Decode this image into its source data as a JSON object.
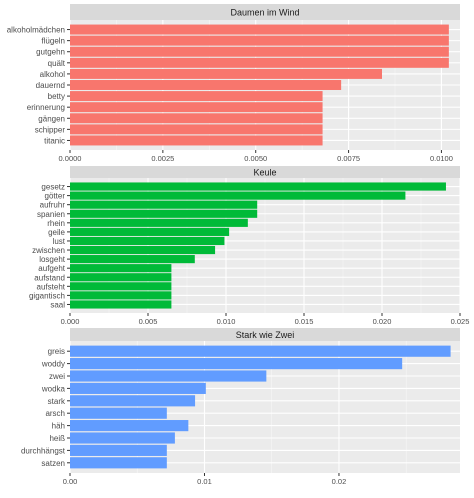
{
  "chart_data": [
    {
      "type": "bar",
      "orientation": "horizontal",
      "title": "Daumen im Wind",
      "color": "#F8766D",
      "categories": [
        "alkoholmädchen",
        "flügeln",
        "gutgehn",
        "quält",
        "alkohol",
        "dauernd",
        "betty",
        "erinnerung",
        "gängen",
        "schipper",
        "titanic"
      ],
      "values": [
        0.0102,
        0.0102,
        0.0102,
        0.0102,
        0.0084,
        0.0073,
        0.0068,
        0.0068,
        0.0068,
        0.0068,
        0.0068
      ],
      "xlim": [
        0,
        0.0105
      ],
      "xticks": [
        0,
        0.0025,
        0.005,
        0.0075,
        0.01
      ],
      "xtick_labels": [
        "0.0000",
        "0.0025",
        "0.0050",
        "0.0075",
        "0.0100"
      ],
      "grid": true,
      "legend": "none"
    },
    {
      "type": "bar",
      "orientation": "horizontal",
      "title": "Keule",
      "color": "#00BA38",
      "categories": [
        "gesetz",
        "götter",
        "aufruhr",
        "spanien",
        "rhein",
        "geile",
        "lust",
        "zwischen",
        "losgeht",
        "aufgeht",
        "aufstand",
        "aufsteht",
        "gigantisch",
        "saal"
      ],
      "values": [
        0.0241,
        0.0215,
        0.012,
        0.012,
        0.0114,
        0.0102,
        0.0099,
        0.0093,
        0.008,
        0.0065,
        0.0065,
        0.0065,
        0.0065,
        0.0065
      ],
      "xlim": [
        0,
        0.025
      ],
      "xticks": [
        0,
        0.005,
        0.01,
        0.015,
        0.02,
        0.025
      ],
      "xtick_labels": [
        "0.000",
        "0.005",
        "0.010",
        "0.015",
        "0.020",
        "0.025"
      ],
      "grid": true,
      "legend": "none"
    },
    {
      "type": "bar",
      "orientation": "horizontal",
      "title": "Stark wie Zwei",
      "color": "#619CFF",
      "categories": [
        "greis",
        "woddy",
        "zwei",
        "wodka",
        "stark",
        "arsch",
        "häh",
        "heiß",
        "durchhängst",
        "satzen"
      ],
      "values": [
        0.0283,
        0.0247,
        0.0146,
        0.0101,
        0.0093,
        0.0072,
        0.0088,
        0.0078,
        0.0072,
        0.0072
      ],
      "xlim": [
        0,
        0.029
      ],
      "xticks": [
        0,
        0.01,
        0.02
      ],
      "xtick_labels": [
        "0.00",
        "0.01",
        "0.02"
      ],
      "grid": true,
      "legend": "none"
    }
  ]
}
